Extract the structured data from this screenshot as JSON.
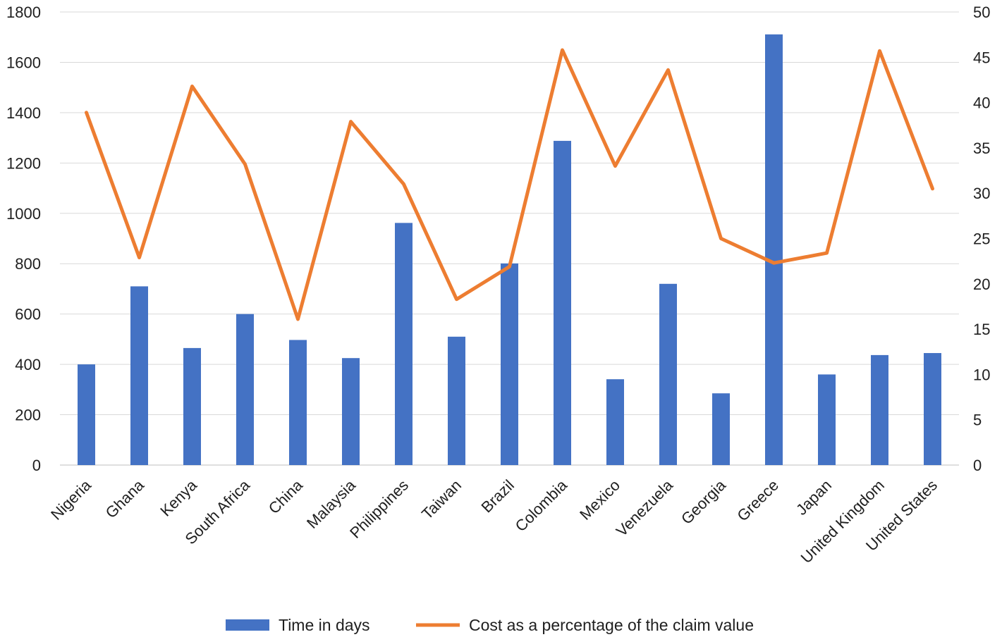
{
  "chart_data": {
    "type": "bar",
    "categories": [
      "Nigeria",
      "Ghana",
      "Kenya",
      "South Africa",
      "China",
      "Malaysia",
      "Philippines",
      "Taiwan",
      "Brazil",
      "Colombia",
      "Mexico",
      "Venezuela",
      "Georgia",
      "Greece",
      "Japan",
      "United Kingdom",
      "United States"
    ],
    "series": [
      {
        "name": "Time in days",
        "type": "bar",
        "axis": "left",
        "color": "#4472C4",
        "values": [
          400,
          710,
          465,
          600,
          497,
          425,
          962,
          510,
          801,
          1288,
          341,
          720,
          285,
          1711,
          360,
          437,
          445
        ]
      },
      {
        "name": "Cost as a percentage of the claim value",
        "type": "line",
        "axis": "right",
        "color": "#ED7D31",
        "values": [
          38.9,
          22.9,
          41.8,
          33.2,
          16.1,
          37.9,
          31.0,
          18.3,
          21.9,
          45.8,
          33.0,
          43.6,
          25.0,
          22.3,
          23.4,
          45.7,
          30.5
        ]
      }
    ],
    "y_left": {
      "min": 0,
      "max": 1800,
      "step": 200,
      "ticks": [
        "0",
        "200",
        "400",
        "600",
        "800",
        "1000",
        "1200",
        "1400",
        "1600",
        "1800"
      ]
    },
    "y_right": {
      "min": 0,
      "max": 50,
      "step": 5,
      "ticks": [
        "0",
        "5",
        "10",
        "15",
        "20",
        "25",
        "30",
        "35",
        "40",
        "45",
        "50"
      ]
    },
    "grid": true,
    "legend_position": "bottom",
    "title": "",
    "xlabel": "",
    "ylabel": ""
  }
}
